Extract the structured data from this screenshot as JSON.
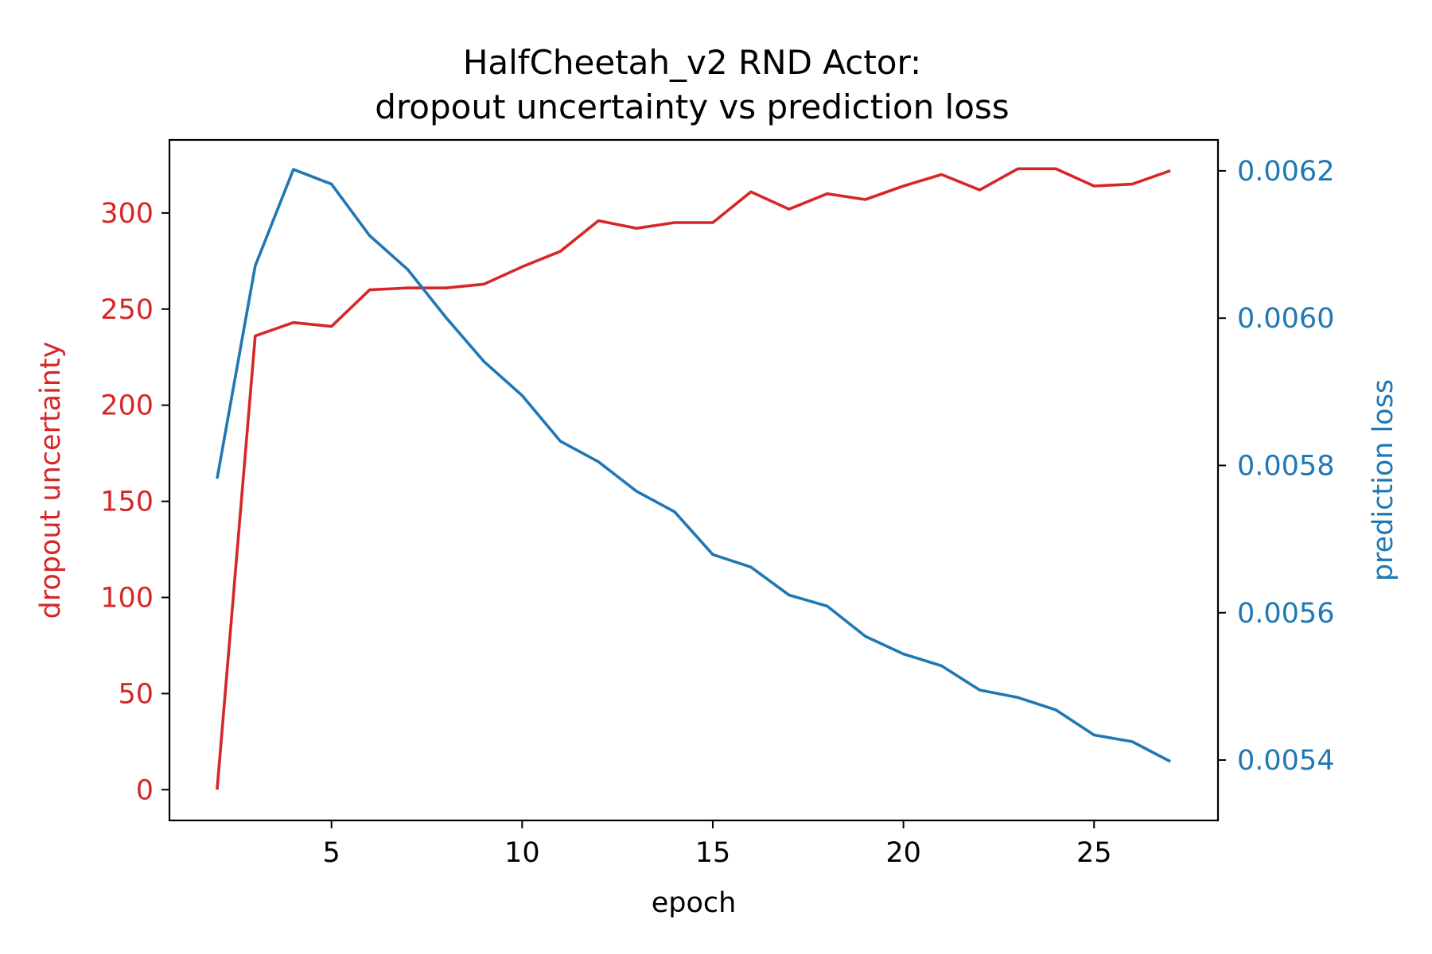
{
  "chart_data": {
    "type": "line",
    "title_line1": "HalfCheetah_v2 RND Actor:",
    "title_line2": "dropout uncertainty vs prediction loss",
    "xlabel": "epoch",
    "ylabel_left": "dropout uncertainty",
    "ylabel_right": "prediction loss",
    "xlim": [
      0.75,
      28.25
    ],
    "ylim_left": [
      -16,
      338
    ],
    "ylim_right": [
      0.005318,
      0.006242
    ],
    "x_ticks": [
      {
        "value": 5,
        "label": "5"
      },
      {
        "value": 10,
        "label": "10"
      },
      {
        "value": 15,
        "label": "15"
      },
      {
        "value": 20,
        "label": "20"
      },
      {
        "value": 25,
        "label": "25"
      }
    ],
    "y_ticks_left": [
      {
        "value": 0,
        "label": "0"
      },
      {
        "value": 50,
        "label": "50"
      },
      {
        "value": 100,
        "label": "100"
      },
      {
        "value": 150,
        "label": "150"
      },
      {
        "value": 200,
        "label": "200"
      },
      {
        "value": 250,
        "label": "250"
      },
      {
        "value": 300,
        "label": "300"
      }
    ],
    "y_ticks_right": [
      {
        "value": 0.0054,
        "label": "0.0054"
      },
      {
        "value": 0.0056,
        "label": "0.0056"
      },
      {
        "value": 0.0058,
        "label": "0.0058"
      },
      {
        "value": 0.006,
        "label": "0.0060"
      },
      {
        "value": 0.0062,
        "label": "0.0062"
      }
    ],
    "grid": false,
    "x": [
      2,
      3,
      4,
      5,
      6,
      7,
      8,
      9,
      10,
      11,
      12,
      13,
      14,
      15,
      16,
      17,
      18,
      19,
      20,
      21,
      22,
      23,
      24,
      25,
      26,
      27
    ],
    "series": [
      {
        "name": "dropout uncertainty",
        "axis": "left",
        "color": "#d62728",
        "values": [
          0,
          236,
          243,
          241,
          260,
          261,
          261,
          263,
          272,
          280,
          296,
          292,
          295,
          295,
          311,
          302,
          310,
          307,
          314,
          320,
          312,
          323,
          323,
          314,
          315,
          322
        ]
      },
      {
        "name": "prediction loss",
        "axis": "right",
        "color": "#1f77b4",
        "values": [
          0.005782,
          0.006071,
          0.006202,
          0.006182,
          0.006112,
          0.006066,
          0.006001,
          0.005941,
          0.005895,
          0.005833,
          0.005805,
          0.005765,
          0.005737,
          0.005679,
          0.005662,
          0.005624,
          0.005609,
          0.005568,
          0.005544,
          0.005528,
          0.005495,
          0.005485,
          0.005468,
          0.005434,
          0.005425,
          0.005398
        ]
      }
    ]
  }
}
